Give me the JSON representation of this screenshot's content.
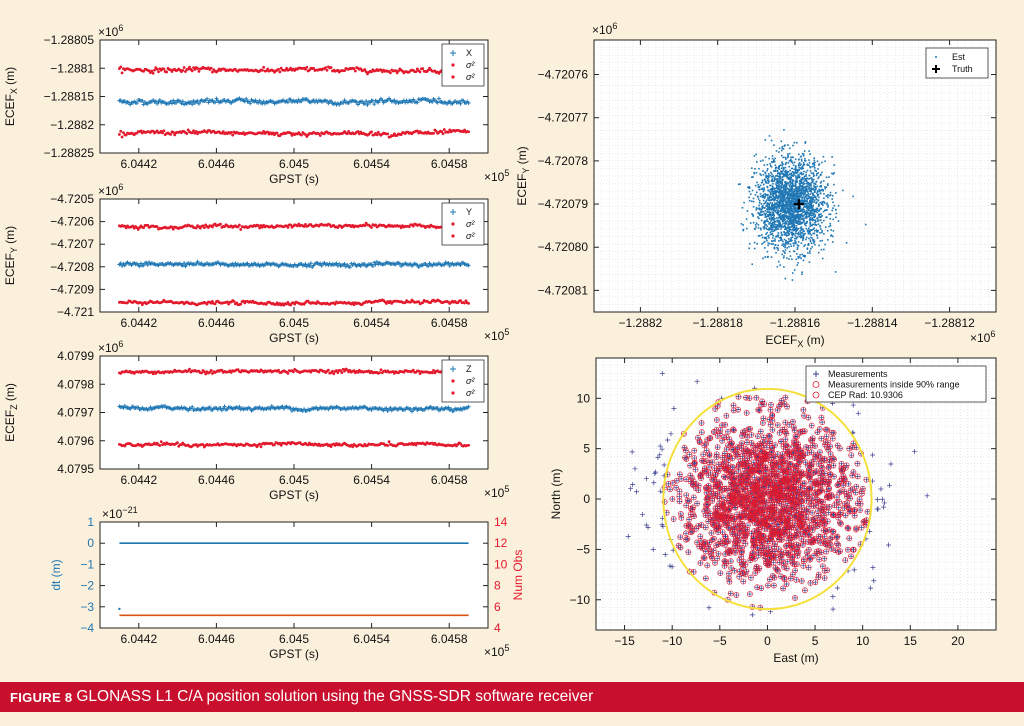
{
  "caption": {
    "label": "FIGURE 8",
    "text": "GLONASS L1 C/A position solution using the GNSS-SDR software receiver"
  },
  "colors": {
    "background": "#fbf0dc",
    "caption_bg": "#c8102e",
    "blue": "#1f77b4",
    "red": "#e31a2d",
    "navy": "#3a3f8f",
    "yellow": "#f5e03c",
    "orange": "#d95319"
  },
  "chart_data": [
    {
      "id": "x",
      "type": "scatter",
      "ylabel": "ECEF",
      "ylabel_sub": "X",
      "ylabel_unit": " (m)",
      "xlabel": "GPST (s)",
      "x_exponent": "×10",
      "x_exponent_power": "5",
      "y_exponent": "×10",
      "y_exponent_power": "6",
      "xlim": [
        604400,
        604600
      ],
      "ylim": [
        -1.28825,
        -1.28805
      ],
      "x_ticks": [
        604420,
        604460,
        604500,
        604540,
        604580
      ],
      "x_tick_labels": [
        "6.0442",
        "6.0446",
        "6.045",
        "6.0454",
        "6.0458"
      ],
      "y_ticks": [
        -1.28805,
        -1.2881,
        -1.28815,
        -1.2882,
        -1.28825
      ],
      "y_tick_labels": [
        "−1.28805",
        "−1.2881",
        "−1.28815",
        "−1.2882",
        "−1.28825"
      ],
      "series": [
        {
          "name": "X",
          "marker": "+",
          "color": "blue",
          "center": -1.288159,
          "noise": 2.8e-06
        },
        {
          "name": "σ²",
          "marker": ".",
          "color": "red",
          "center": -1.288103,
          "noise": 2.5e-06
        },
        {
          "name": "σ²",
          "marker": ".",
          "color": "red",
          "center": -1.288215,
          "noise": 2.5e-06
        }
      ],
      "x_range": [
        604410,
        604590
      ],
      "legend_location": "top-right"
    },
    {
      "id": "y",
      "type": "scatter",
      "ylabel": "ECEF",
      "ylabel_sub": "Y",
      "ylabel_unit": " (m)",
      "xlabel": "GPST (s)",
      "x_exponent": "×10",
      "x_exponent_power": "5",
      "y_exponent": "×10",
      "y_exponent_power": "6",
      "xlim": [
        604400,
        604600
      ],
      "ylim": [
        -4.721,
        -4.7205
      ],
      "x_ticks": [
        604420,
        604460,
        604500,
        604540,
        604580
      ],
      "x_tick_labels": [
        "6.0442",
        "6.0446",
        "6.045",
        "6.0454",
        "6.0458"
      ],
      "y_ticks": [
        -4.7205,
        -4.7206,
        -4.7207,
        -4.7208,
        -4.7209,
        -4.721
      ],
      "y_tick_labels": [
        "−4.7205",
        "−4.7206",
        "−4.7207",
        "−4.7208",
        "−4.7209",
        "−4.721"
      ],
      "series": [
        {
          "name": "Y",
          "marker": "+",
          "color": "blue",
          "center": -4.72079,
          "noise": 5.5e-06
        },
        {
          "name": "σ²",
          "marker": ".",
          "color": "red",
          "center": -4.72062,
          "noise": 5e-06
        },
        {
          "name": "σ²",
          "marker": ".",
          "color": "red",
          "center": -4.72096,
          "noise": 5e-06
        }
      ],
      "x_range": [
        604410,
        604590
      ],
      "legend_location": "top-right"
    },
    {
      "id": "z",
      "type": "scatter",
      "ylabel": "ECEF",
      "ylabel_sub": "Z",
      "ylabel_unit": " (m)",
      "xlabel": "GPST (s)",
      "x_exponent": "×10",
      "x_exponent_power": "5",
      "y_exponent": "×10",
      "y_exponent_power": "6",
      "xlim": [
        604400,
        604600
      ],
      "ylim": [
        4.0795,
        4.0799
      ],
      "x_ticks": [
        604420,
        604460,
        604500,
        604540,
        604580
      ],
      "x_tick_labels": [
        "6.0442",
        "6.0446",
        "6.045",
        "6.0454",
        "6.0458"
      ],
      "y_ticks": [
        4.0799,
        4.0798,
        4.0797,
        4.0796,
        4.0795
      ],
      "y_tick_labels": [
        "4.0799",
        "4.0798",
        "4.0797",
        "4.0796",
        "4.0795"
      ],
      "series": [
        {
          "name": "Z",
          "marker": "+",
          "color": "blue",
          "center": 4.079715,
          "noise": 4.5e-06
        },
        {
          "name": "σ²",
          "marker": ".",
          "color": "red",
          "center": 4.079845,
          "noise": 4e-06
        },
        {
          "name": "σ²",
          "marker": ".",
          "color": "red",
          "center": 4.079585,
          "noise": 4e-06
        }
      ],
      "x_range": [
        604410,
        604590
      ],
      "legend_location": "top-right"
    },
    {
      "id": "dt",
      "type": "line",
      "ylabel": "dt (m)",
      "ylabel_right": "Num Obs",
      "xlabel": "GPST (s)",
      "x_exponent": "×10",
      "x_exponent_power": "5",
      "y_exponent": "×10",
      "y_exponent_power": "−21",
      "xlim": [
        604400,
        604600
      ],
      "ylim": [
        -4,
        1
      ],
      "ylim_right": [
        4,
        14
      ],
      "x_ticks": [
        604420,
        604460,
        604500,
        604540,
        604580
      ],
      "x_tick_labels": [
        "6.0442",
        "6.0446",
        "6.045",
        "6.0454",
        "6.0458"
      ],
      "y_ticks": [
        1,
        0,
        -1,
        -2,
        -3,
        -4
      ],
      "y_tick_labels": [
        "1",
        "0",
        "−1",
        "−2",
        "−3",
        "−4"
      ],
      "y_ticks_right": [
        14,
        12,
        10,
        8,
        6,
        4
      ],
      "y_tick_labels_right": [
        "14",
        "12",
        "10",
        "8",
        "6",
        "4"
      ],
      "series": [
        {
          "name": "dt",
          "color": "blue",
          "axis": "left",
          "x": [
            604410,
            604590
          ],
          "y": [
            0,
            0
          ]
        },
        {
          "name": "Num Obs",
          "color": "orange",
          "axis": "right",
          "x": [
            604410,
            604590
          ],
          "y": [
            5.2,
            5.2
          ]
        }
      ],
      "outlier": {
        "x": 604410,
        "y": -3.1
      }
    },
    {
      "id": "xy",
      "type": "scatter",
      "xlabel": "ECEF",
      "xlabel_sub": "X",
      "xlabel_unit": " (m)",
      "ylabel": "ECEF",
      "ylabel_sub": "Y",
      "ylabel_unit": " (m)",
      "x_exponent": "×10",
      "x_exponent_power": "6",
      "y_exponent": "×10",
      "y_exponent_power": "6",
      "xlim": [
        -1.288212,
        -1.288108
      ],
      "ylim": [
        -4.720815,
        -4.720752
      ],
      "x_ticks": [
        -1.2882,
        -1.28818,
        -1.28816,
        -1.28814,
        -1.28812
      ],
      "x_tick_labels": [
        "−1.2882",
        "−1.28818",
        "−1.28816",
        "−1.28814",
        "−1.28812"
      ],
      "y_ticks": [
        -4.72076,
        -4.72077,
        -4.72078,
        -4.72079,
        -4.7208,
        -4.72081
      ],
      "y_tick_labels": [
        "−4.72076",
        "−4.72077",
        "−4.72078",
        "−4.72079",
        "−4.72080",
        "−4.72081"
      ],
      "est": {
        "name": "Est",
        "center": [
          -1.288161,
          -4.72079
        ],
        "sigma": [
          4.5e-06,
          5.2e-06
        ],
        "count": 2400
      },
      "truth": {
        "name": "Truth",
        "x": -1.288159,
        "y": -4.72079
      },
      "grid": true,
      "legend_location": "top-right"
    },
    {
      "id": "en",
      "type": "scatter",
      "xlabel": "East (m)",
      "ylabel": "North (m)",
      "xlim": [
        -18,
        24
      ],
      "ylim": [
        -13,
        14
      ],
      "x_ticks": [
        -15,
        -10,
        -5,
        0,
        5,
        10,
        15,
        20
      ],
      "x_tick_labels": [
        "−15",
        "−10",
        "−5",
        "0",
        "5",
        "10",
        "15",
        "20"
      ],
      "y_ticks": [
        10,
        5,
        0,
        -5,
        -10
      ],
      "y_tick_labels": [
        "10",
        "5",
        "0",
        "−5",
        "−10"
      ],
      "series": [
        {
          "name": "Measurements",
          "marker": "+",
          "color": "navy"
        },
        {
          "name": "Measurements inside 90% range",
          "marker": "o",
          "color": "red"
        },
        {
          "name": "CEP Rad: 10.9306",
          "marker": "o",
          "color": "red"
        }
      ],
      "cep_radius": 10.9306,
      "cloud": {
        "sigma": [
          5.2,
          4.6
        ],
        "count": 1800
      },
      "grid": true,
      "legend_location": "top-right"
    }
  ]
}
